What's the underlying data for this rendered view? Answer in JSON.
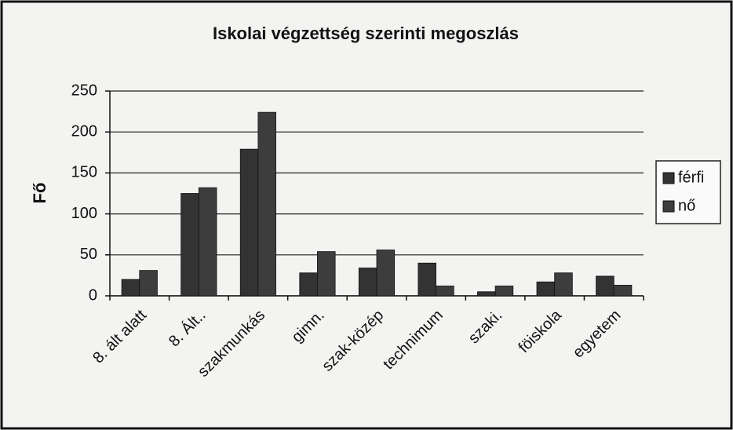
{
  "chart_data": {
    "type": "bar",
    "title": "Iskolai végzettség szerinti megoszlás",
    "y_label": "Fő",
    "categories": [
      "8. ált alatt",
      "8. Ált..",
      "szakmunkás",
      "gimn.",
      "szak-közép",
      "technimum",
      "szaki.",
      "föiskola",
      "egyetem"
    ],
    "series": [
      {
        "name": "férfi",
        "color": "#333333",
        "values": [
          20,
          125,
          179,
          28,
          34,
          40,
          5,
          17,
          24
        ]
      },
      {
        "name": "nő",
        "color": "#3d3d3d",
        "values": [
          31,
          132,
          224,
          54,
          56,
          12,
          12,
          28,
          13
        ]
      }
    ],
    "ylim": [
      0,
      250
    ],
    "yticks": [
      0,
      50,
      100,
      150,
      200,
      250
    ],
    "grid": true,
    "legend": "right"
  }
}
